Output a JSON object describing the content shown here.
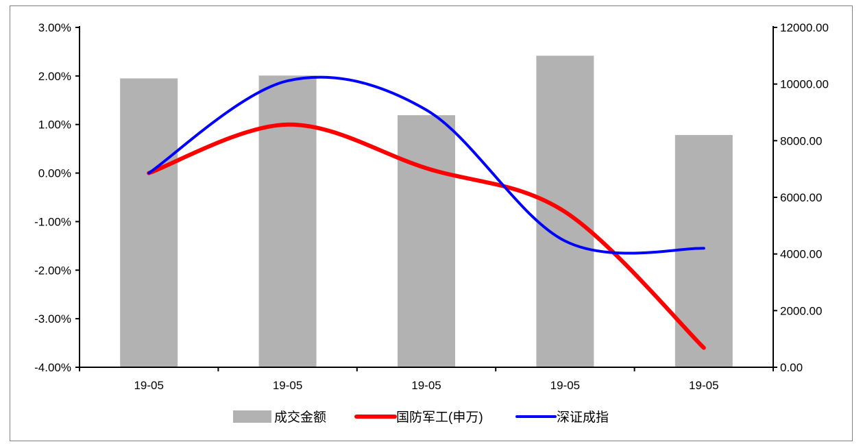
{
  "chart_data": {
    "type": "bar",
    "categories": [
      "19-05",
      "19-05",
      "19-05",
      "19-05",
      "19-05"
    ],
    "y_left": {
      "min": -0.04,
      "max": 0.03,
      "step": 0.01,
      "tick_labels": [
        "3.00%",
        "2.00%",
        "1.00%",
        "0.00%",
        "-1.00%",
        "-2.00%",
        "-3.00%",
        "-4.00%"
      ]
    },
    "y_right": {
      "min": 0,
      "max": 12000,
      "step": 2000,
      "tick_labels": [
        "12000.00",
        "10000.00",
        "8000.00",
        "6000.00",
        "4000.00",
        "2000.00",
        "0.00"
      ]
    },
    "series": [
      {
        "name": "成交金额",
        "kind": "bar",
        "axis": "right",
        "color": "#b2b2b2",
        "values": [
          10200,
          10300,
          8900,
          11000,
          8200
        ]
      },
      {
        "name": "国防军工(申万)",
        "kind": "smooth-line",
        "axis": "left",
        "color": "#ff0000",
        "values": [
          0.0,
          0.01,
          0.001,
          -0.008,
          -0.036
        ]
      },
      {
        "name": "深证成指",
        "kind": "smooth-line",
        "axis": "left",
        "color": "#0000ff",
        "values": [
          0.0,
          0.019,
          0.013,
          -0.014,
          -0.0155
        ]
      }
    ],
    "legend_position": "bottom",
    "grid": false
  }
}
